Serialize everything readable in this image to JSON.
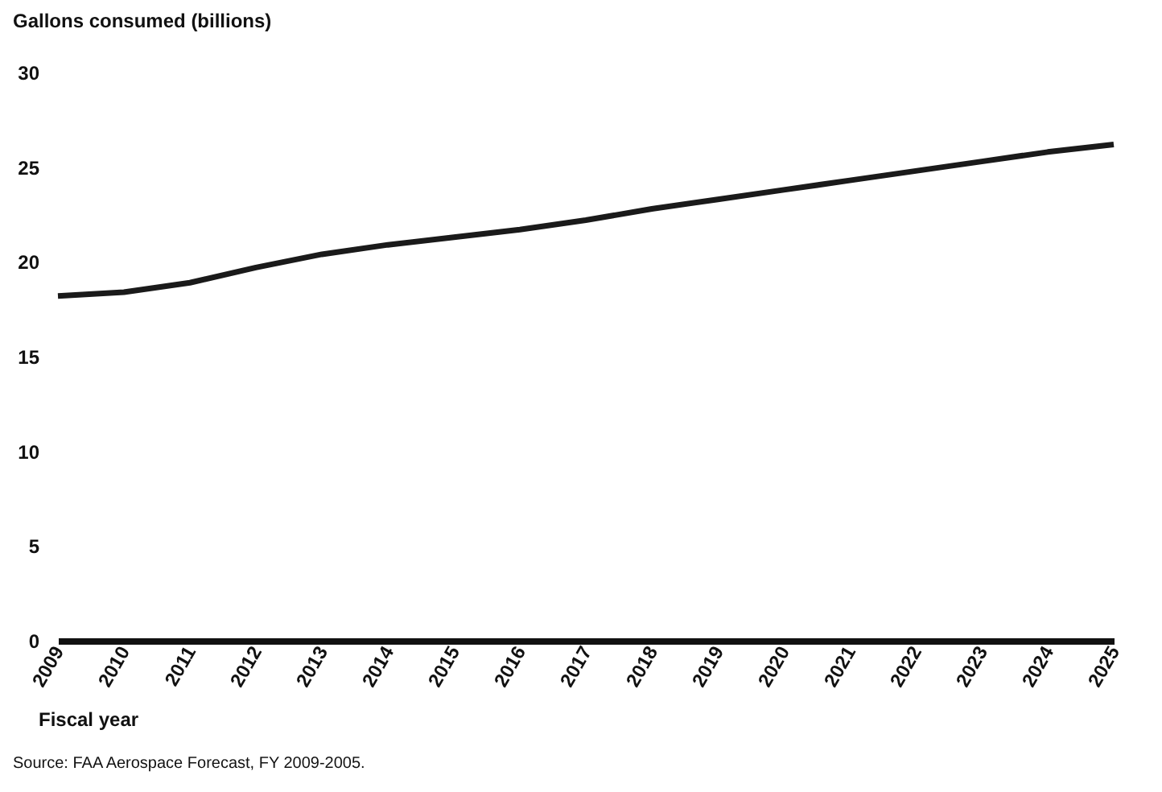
{
  "chart_data": {
    "type": "line",
    "ylabel": "Gallons consumed (billions)",
    "xlabel": "Fiscal year",
    "categories": [
      "2009",
      "2010",
      "2011",
      "2012",
      "2013",
      "2014",
      "2015",
      "2016",
      "2017",
      "2018",
      "2019",
      "2020",
      "2021",
      "2022",
      "2023",
      "2024",
      "2025"
    ],
    "series": [
      {
        "color": "#1a1a1a",
        "values": [
          18.2,
          18.4,
          18.9,
          19.7,
          20.4,
          20.9,
          21.3,
          21.7,
          22.2,
          22.8,
          23.3,
          23.8,
          24.3,
          24.8,
          25.3,
          25.8,
          26.2
        ]
      }
    ],
    "ylim": [
      0,
      30
    ],
    "yticks": [
      0,
      5,
      10,
      15,
      20,
      25,
      30
    ],
    "grid": false,
    "line_style": "solid",
    "annotations": [
      "Source: FAA Aerospace Forecast, FY 2009-2005."
    ]
  }
}
